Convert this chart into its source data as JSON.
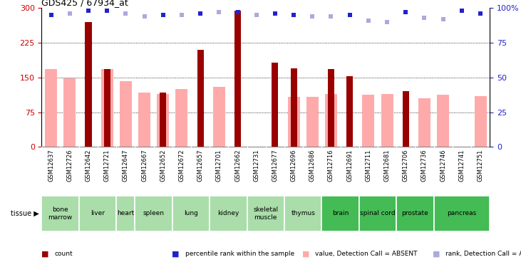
{
  "title": "GDS425 / 67934_at",
  "samples": [
    "GSM12637",
    "GSM12726",
    "GSM12642",
    "GSM12721",
    "GSM12647",
    "GSM12667",
    "GSM12652",
    "GSM12672",
    "GSM12657",
    "GSM12701",
    "GSM12662",
    "GSM12731",
    "GSM12677",
    "GSM12696",
    "GSM12686",
    "GSM12716",
    "GSM12691",
    "GSM12711",
    "GSM12681",
    "GSM12706",
    "GSM12736",
    "GSM12746",
    "GSM12741",
    "GSM12751"
  ],
  "tissues": [
    {
      "name": "bone\nmarrow",
      "dark": false,
      "span": [
        0,
        2
      ]
    },
    {
      "name": "liver",
      "dark": false,
      "span": [
        2,
        4
      ]
    },
    {
      "name": "heart",
      "dark": false,
      "span": [
        4,
        5
      ]
    },
    {
      "name": "spleen",
      "dark": false,
      "span": [
        5,
        7
      ]
    },
    {
      "name": "lung",
      "dark": false,
      "span": [
        7,
        9
      ]
    },
    {
      "name": "kidney",
      "dark": false,
      "span": [
        9,
        11
      ]
    },
    {
      "name": "skeletal\nmuscle",
      "dark": false,
      "span": [
        11,
        13
      ]
    },
    {
      "name": "thymus",
      "dark": false,
      "span": [
        13,
        15
      ]
    },
    {
      "name": "brain",
      "dark": true,
      "span": [
        15,
        17
      ]
    },
    {
      "name": "spinal cord",
      "dark": true,
      "span": [
        17,
        19
      ]
    },
    {
      "name": "prostate",
      "dark": true,
      "span": [
        19,
        21
      ]
    },
    {
      "name": "pancreas",
      "dark": true,
      "span": [
        21,
        24
      ]
    }
  ],
  "count_values": [
    0,
    0,
    270,
    168,
    0,
    0,
    118,
    0,
    210,
    0,
    295,
    0,
    182,
    170,
    0,
    168,
    152,
    0,
    0,
    120,
    0,
    0,
    0,
    0
  ],
  "absent_value_bars": [
    168,
    148,
    0,
    168,
    142,
    118,
    115,
    125,
    0,
    130,
    0,
    0,
    0,
    108,
    108,
    115,
    0,
    112,
    115,
    0,
    105,
    112,
    0,
    110
  ],
  "rank_dark": [
    true,
    false,
    true,
    true,
    false,
    false,
    true,
    false,
    true,
    false,
    true,
    false,
    true,
    true,
    false,
    false,
    true,
    false,
    false,
    true,
    false,
    false,
    true,
    true
  ],
  "rank_values_pct": [
    95,
    96,
    98,
    98,
    96,
    94,
    95,
    95,
    96,
    97,
    97,
    95,
    96,
    95,
    94,
    94,
    95,
    91,
    90,
    97,
    93,
    92,
    98,
    96
  ],
  "ylim_left": [
    0,
    300
  ],
  "ylim_right": [
    0,
    100
  ],
  "yticks_left": [
    0,
    75,
    150,
    225,
    300
  ],
  "yticks_right": [
    0,
    25,
    50,
    75,
    100
  ],
  "dark_red": "#990000",
  "light_red": "#ffaaaa",
  "dark_blue": "#2222cc",
  "light_blue": "#aaaadd",
  "tissue_light": "#aaddaa",
  "tissue_dark": "#44bb55",
  "sample_bg": "#cccccc",
  "legend": [
    {
      "color": "#990000",
      "label": "count"
    },
    {
      "color": "#2222cc",
      "label": "percentile rank within the sample"
    },
    {
      "color": "#ffaaaa",
      "label": "value, Detection Call = ABSENT"
    },
    {
      "color": "#aaaadd",
      "label": "rank, Detection Call = ABSENT"
    }
  ]
}
